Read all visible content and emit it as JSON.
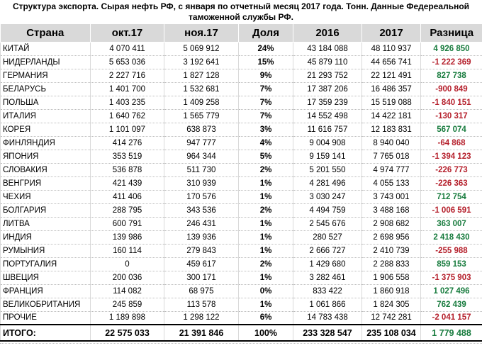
{
  "title_lines": [
    "Структура экспорта. Сырая нефть  РФ, с января по отчетный месяц 2017 года. Тонн. Данные Федереальной",
    "таможенной службы РФ."
  ],
  "colors": {
    "positive_diff": "#177b3d",
    "negative_diff": "#b5202c",
    "header_background": "#d9d9d9",
    "grid_line": "#bdbdbd",
    "total_border": "#000000"
  },
  "chart_data": {
    "type": "table",
    "title": "Структура экспорта. Сырая нефть  РФ, с января по отчетный месяц 2017 года. Тонн. Данные Федереальной таможенной службы РФ.",
    "columns": [
      "Страна",
      "окт.17",
      "ноя.17",
      "Доля",
      "2016",
      "2017",
      "Разница"
    ],
    "rows": [
      [
        "КИТАЙ",
        "4 070 411",
        "5 069 912",
        "24%",
        "43 184 088",
        "48 110 937",
        "4 926 850"
      ],
      [
        "НИДЕРЛАНДЫ",
        "5 653 036",
        "3 192 641",
        "15%",
        "45 879 110",
        "44 656 741",
        "-1 222 369"
      ],
      [
        "ГЕРМАНИЯ",
        "2 227 716",
        "1 827 128",
        "9%",
        "21 293 752",
        "22 121 491",
        "827 738"
      ],
      [
        "БЕЛАРУСЬ",
        "1 401 700",
        "1 532 681",
        "7%",
        "17 387 206",
        "16 486 357",
        "-900 849"
      ],
      [
        "ПОЛЬША",
        "1 403 235",
        "1 409 258",
        "7%",
        "17 359 239",
        "15 519 088",
        "-1 840 151"
      ],
      [
        "ИТАЛИЯ",
        "1 640 762",
        "1 565 779",
        "7%",
        "14 552 498",
        "14 422 181",
        "-130 317"
      ],
      [
        "КОРЕЯ",
        "1 101 097",
        "638 873",
        "3%",
        "11 616 757",
        "12 183 831",
        "567 074"
      ],
      [
        "ФИНЛЯНДИЯ",
        "414 276",
        "947 777",
        "4%",
        "9 004 908",
        "8 940 040",
        "-64 868"
      ],
      [
        "ЯПОНИЯ",
        "353 519",
        "964 344",
        "5%",
        "9 159 141",
        "7 765 018",
        "-1 394 123"
      ],
      [
        "СЛОВАКИЯ",
        "536 878",
        "511 730",
        "2%",
        "5 201 550",
        "4 974 777",
        "-226 773"
      ],
      [
        "ВЕНГРИЯ",
        "421 439",
        "310 939",
        "1%",
        "4 281 496",
        "4 055 133",
        "-226 363"
      ],
      [
        "ЧЕХИЯ",
        "411 406",
        "170 576",
        "1%",
        "3 030 247",
        "3 743 001",
        "712 754"
      ],
      [
        "БОЛГАРИЯ",
        "288 795",
        "343 536",
        "2%",
        "4 494 759",
        "3 488 168",
        "-1 006 591"
      ],
      [
        "ЛИТВА",
        "600 791",
        "246 431",
        "1%",
        "2 545 676",
        "2 908 682",
        "363 007"
      ],
      [
        "ИНДИЯ",
        "139 986",
        "139 936",
        "1%",
        "280 527",
        "2 698 956",
        "2 418 430"
      ],
      [
        "РУМЫНИЯ",
        "160 114",
        "279 843",
        "1%",
        "2 666 727",
        "2 410 739",
        "-255 988"
      ],
      [
        "ПОРТУГАЛИЯ",
        "0",
        "459 617",
        "2%",
        "1 429 680",
        "2 288 833",
        "859 153"
      ],
      [
        "ШВЕЦИЯ",
        "200 036",
        "300 171",
        "1%",
        "3 282 461",
        "1 906 558",
        "-1 375 903"
      ],
      [
        "ФРАНЦИЯ",
        "114 082",
        "68 975",
        "0%",
        "833 422",
        "1 860 918",
        "1 027 496"
      ],
      [
        "ВЕЛИКОБРИТАНИЯ",
        "245 859",
        "113 578",
        "1%",
        "1 061 866",
        "1 824 305",
        "762 439"
      ],
      [
        "ПРОЧИЕ",
        "1 189 898",
        "1 298 122",
        "6%",
        "14 783 438",
        "12 742 281",
        "-2 041 157"
      ]
    ],
    "total_row": [
      "ИТОГО:",
      "22 575 033",
      "21 391 846",
      "100%",
      "233 328 547",
      "235 108 034",
      "1 779 488"
    ]
  }
}
